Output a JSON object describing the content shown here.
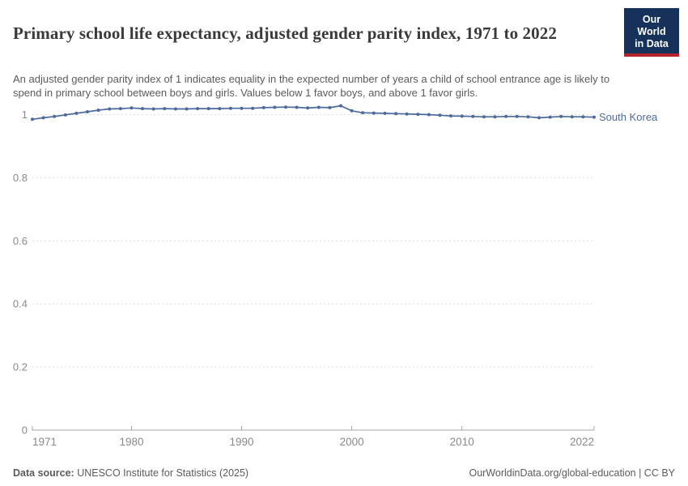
{
  "header": {
    "title": "Primary school life expectancy, adjusted gender parity index, 1971 to 2022",
    "subtitle": "An adjusted gender parity index of 1 indicates equality in the expected number of years a child of school entrance age is likely to spend in primary school between boys and girls. Values below 1 favor boys, and above 1 favor girls.",
    "logo": {
      "line1": "Our World",
      "line2": "in Data",
      "bg_color": "#16325a",
      "accent_color": "#b5232d"
    }
  },
  "chart_data": {
    "type": "line",
    "title": "Primary school life expectancy, adjusted gender parity index, 1971 to 2022",
    "xlabel": "",
    "ylabel": "",
    "xlim": [
      1971,
      2022
    ],
    "ylim": [
      0,
      1.05
    ],
    "grid": "horizontal-dashed",
    "legend_position": "end-of-line-label",
    "axis_label_color": "#8a8a8a",
    "grid_color": "#dcdcdc",
    "axis_color": "#a6a6a6",
    "yticks": [
      0,
      0.2,
      0.4,
      0.6,
      0.8,
      1
    ],
    "ytick_labels": [
      "0",
      "0.2",
      "0.4",
      "0.6",
      "0.8",
      "1"
    ],
    "xticks": [
      1971,
      1980,
      1990,
      2000,
      2010,
      2022
    ],
    "xtick_labels": [
      "1971",
      "1980",
      "1990",
      "2000",
      "2010",
      "2022"
    ],
    "series": [
      {
        "name": "South Korea",
        "color": "#4C6A9C",
        "x": [
          1971,
          1972,
          1973,
          1974,
          1975,
          1976,
          1977,
          1978,
          1979,
          1980,
          1981,
          1982,
          1983,
          1984,
          1985,
          1986,
          1987,
          1988,
          1989,
          1990,
          1991,
          1992,
          1993,
          1994,
          1995,
          1996,
          1997,
          1998,
          1999,
          2000,
          2001,
          2002,
          2003,
          2004,
          2005,
          2006,
          2007,
          2008,
          2009,
          2010,
          2011,
          2012,
          2013,
          2014,
          2015,
          2016,
          2017,
          2018,
          2019,
          2020,
          2021,
          2022
        ],
        "values": [
          0.985,
          0.99,
          0.994,
          0.999,
          1.004,
          1.009,
          1.014,
          1.018,
          1.019,
          1.021,
          1.019,
          1.018,
          1.019,
          1.018,
          1.018,
          1.019,
          1.019,
          1.019,
          1.02,
          1.02,
          1.02,
          1.022,
          1.023,
          1.024,
          1.023,
          1.021,
          1.023,
          1.022,
          1.028,
          1.012,
          1.006,
          1.005,
          1.004,
          1.003,
          1.002,
          1.001,
          1.0,
          0.998,
          0.996,
          0.995,
          0.994,
          0.993,
          0.993,
          0.994,
          0.994,
          0.993,
          0.99,
          0.992,
          0.994,
          0.993,
          0.993,
          0.992
        ]
      }
    ]
  },
  "footer": {
    "data_source_label": "Data source:",
    "data_source_text": " UNESCO Institute for Statistics (2025)",
    "link_text": "OurWorldinData.org/global-education | CC BY"
  }
}
